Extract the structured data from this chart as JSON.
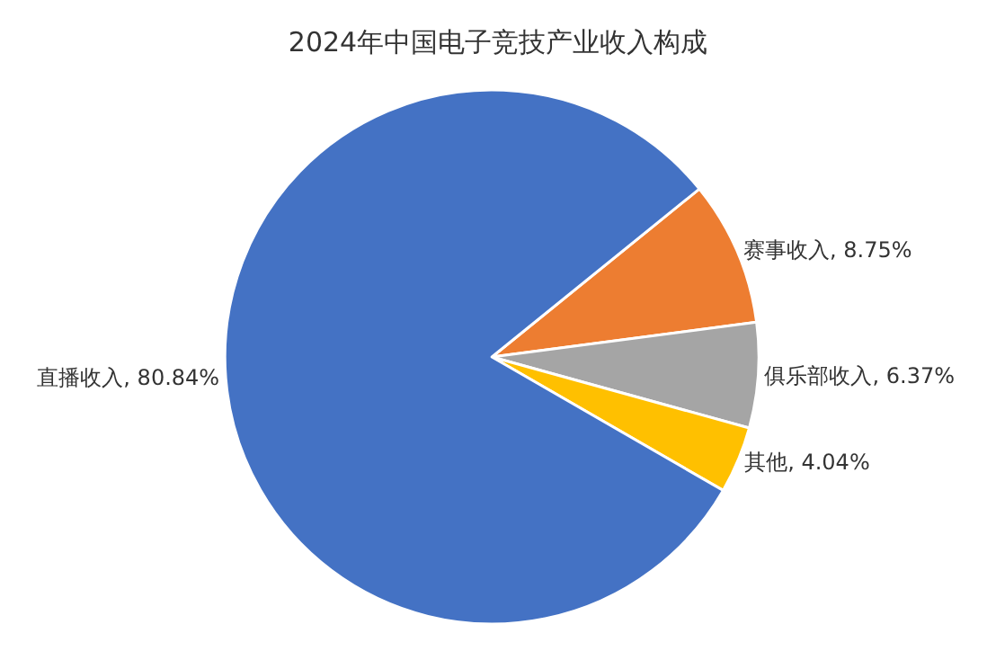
{
  "chart_data": {
    "type": "pie",
    "title": "2024年中国电子竞技产业收入构成",
    "categories": [
      "赛事收入",
      "俱乐部收入",
      "其他",
      "直播收入"
    ],
    "values": [
      8.75,
      6.37,
      4.04,
      80.84
    ],
    "colors": [
      "#ed7d31",
      "#a5a5a5",
      "#ffc000",
      "#4472c4"
    ],
    "value_labels": [
      "8.75%",
      "6.37%",
      "4.04%",
      "80.84%"
    ],
    "legend": false
  }
}
